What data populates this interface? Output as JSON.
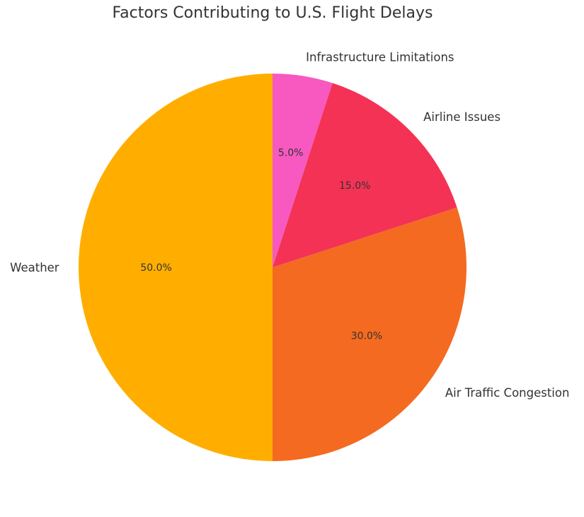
{
  "chart_data": {
    "type": "pie",
    "title": "Factors Contributing to U.S. Flight Delays",
    "categories": [
      "Weather",
      "Air Traffic Congestion",
      "Airline Issues",
      "Infrastructure Limitations"
    ],
    "values": [
      50.0,
      30.0,
      15.0,
      5.0
    ],
    "value_labels": [
      "50.0%",
      "30.0%",
      "15.0%",
      "5.0%"
    ],
    "colors": [
      "#FFAE00",
      "#F46A21",
      "#F43255",
      "#F759C0"
    ],
    "start_angle": 90,
    "direction": "counterclockwise",
    "legend": "none"
  }
}
